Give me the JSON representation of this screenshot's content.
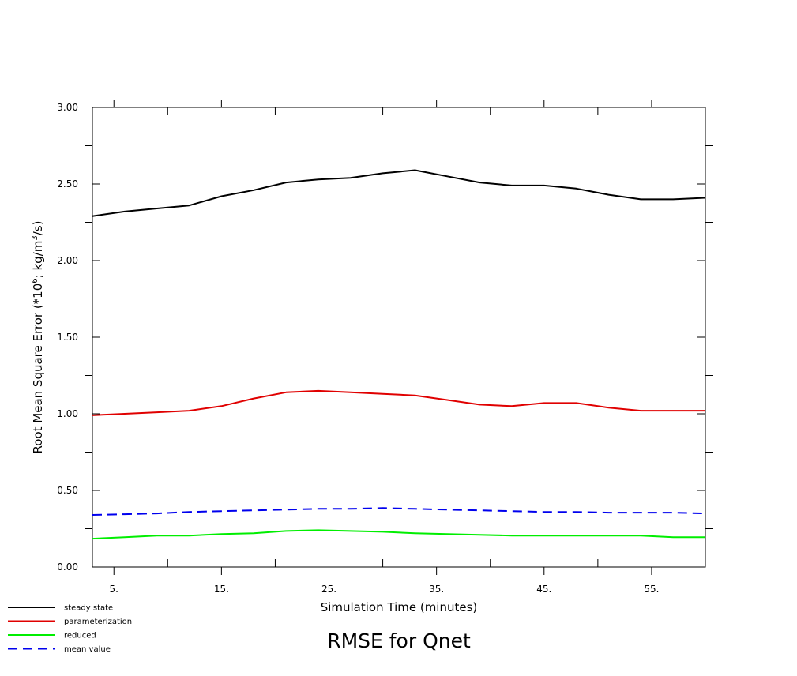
{
  "chart_data": {
    "type": "line",
    "title": "RMSE for Qnet",
    "xlabel": "Simulation Time (minutes)",
    "ylabel": "Root Mean Square Error (*10",
    "ylabel_exp1": "6",
    "ylabel_mid": "; kg/m",
    "ylabel_exp2": "3",
    "ylabel_end": "/s)",
    "xlim": [
      3,
      60
    ],
    "ylim": [
      0,
      3
    ],
    "x_ticks": [
      5,
      15,
      25,
      35,
      45,
      55
    ],
    "x_tick_labels": [
      "5.",
      "15.",
      "25.",
      "35.",
      "45.",
      "55."
    ],
    "x_minor_ticks": [
      10,
      20,
      30,
      40,
      50
    ],
    "y_ticks": [
      0,
      0.5,
      1.0,
      1.5,
      2.0,
      2.5,
      3.0
    ],
    "y_tick_labels": [
      "0.00",
      "0.50",
      "1.00",
      "1.50",
      "2.00",
      "2.50",
      "3.00"
    ],
    "y_minor_ticks": [
      0.25,
      0.75,
      1.25,
      1.75,
      2.25,
      2.75
    ],
    "grid": false,
    "legend_position": "bottom-left",
    "x": [
      3,
      6,
      9,
      12,
      15,
      18,
      21,
      24,
      27,
      30,
      33,
      36,
      39,
      42,
      45,
      48,
      51,
      54,
      57,
      60
    ],
    "series": [
      {
        "name": "steady state",
        "color": "#000000",
        "dash": false,
        "values": [
          2.29,
          2.32,
          2.34,
          2.36,
          2.42,
          2.46,
          2.51,
          2.53,
          2.54,
          2.57,
          2.59,
          2.55,
          2.51,
          2.49,
          2.49,
          2.47,
          2.43,
          2.4,
          2.4,
          2.41
        ]
      },
      {
        "name": "parameterization",
        "color": "#e00000",
        "dash": false,
        "values": [
          0.99,
          1.0,
          1.01,
          1.02,
          1.05,
          1.1,
          1.14,
          1.15,
          1.14,
          1.13,
          1.12,
          1.09,
          1.06,
          1.05,
          1.07,
          1.07,
          1.04,
          1.02,
          1.02,
          1.02
        ]
      },
      {
        "name": "reduced",
        "color": "#00ee00",
        "dash": false,
        "values": [
          0.185,
          0.195,
          0.205,
          0.205,
          0.215,
          0.22,
          0.235,
          0.24,
          0.235,
          0.23,
          0.22,
          0.215,
          0.21,
          0.205,
          0.205,
          0.205,
          0.205,
          0.205,
          0.195,
          0.195
        ]
      },
      {
        "name": "mean value",
        "color": "#0000ee",
        "dash": true,
        "values": [
          0.34,
          0.345,
          0.35,
          0.36,
          0.365,
          0.37,
          0.375,
          0.38,
          0.38,
          0.385,
          0.38,
          0.375,
          0.37,
          0.365,
          0.36,
          0.36,
          0.355,
          0.355,
          0.355,
          0.35
        ]
      }
    ]
  }
}
